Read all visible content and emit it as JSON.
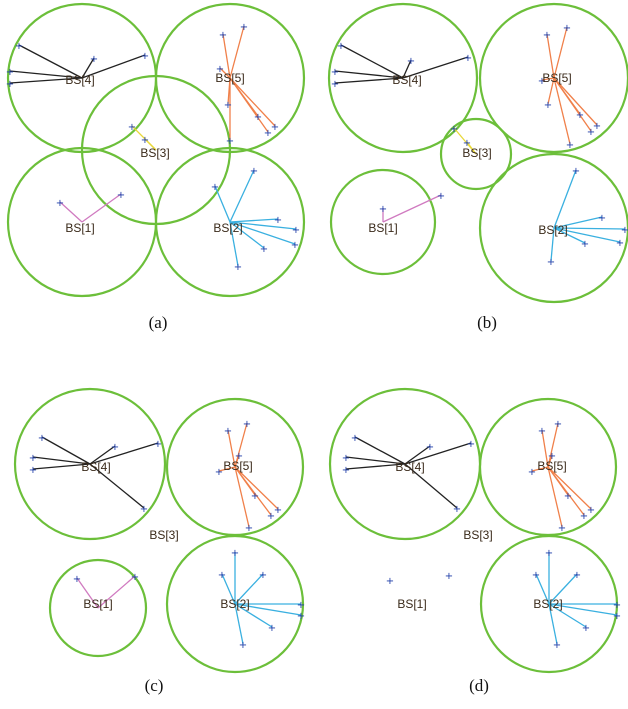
{
  "colors": {
    "circle": "#6cbf3a",
    "ue_marker": "#1f3ea8",
    "label": "#3a2a1a",
    "station_links": {
      "BS[1]": "#d07ac0",
      "BS[2]": "#3ab0e0",
      "BS[3]": "#e8d83a",
      "BS[4]": "#222222",
      "BS[5]": "#f0804a"
    }
  },
  "ue_glyph": "+",
  "panels": [
    {
      "caption": "(a)",
      "stations": [
        {
          "label": "BS[1]",
          "radius": 74,
          "links": 2
        },
        {
          "label": "BS[2]",
          "radius": 74,
          "links": 7
        },
        {
          "label": "BS[3]",
          "radius": 74,
          "links": 2
        },
        {
          "label": "BS[4]",
          "radius": 74,
          "links": 5
        },
        {
          "label": "BS[5]",
          "radius": 74,
          "links": 8
        }
      ]
    },
    {
      "caption": "(b)",
      "stations": [
        {
          "label": "BS[1]",
          "radius": 52,
          "links": 2
        },
        {
          "label": "BS[2]",
          "radius": 74,
          "links": 7
        },
        {
          "label": "BS[3]",
          "radius": 35,
          "links": 2
        },
        {
          "label": "BS[4]",
          "radius": 74,
          "links": 5
        },
        {
          "label": "BS[5]",
          "radius": 74,
          "links": 8
        }
      ]
    },
    {
      "caption": "(c)",
      "stations": [
        {
          "label": "BS[1]",
          "radius": 48,
          "links": 2
        },
        {
          "label": "BS[2]",
          "radius": 68,
          "links": 7
        },
        {
          "label": "BS[3]",
          "radius": 0,
          "links": 0
        },
        {
          "label": "BS[4]",
          "radius": 75,
          "links": 6
        },
        {
          "label": "BS[5]",
          "radius": 68,
          "links": 8
        }
      ]
    },
    {
      "caption": "(d)",
      "stations": [
        {
          "label": "BS[1]",
          "radius": 0,
          "links": 0
        },
        {
          "label": "BS[2]",
          "radius": 68,
          "links": 7
        },
        {
          "label": "BS[3]",
          "radius": 0,
          "links": 0
        },
        {
          "label": "BS[4]",
          "radius": 75,
          "links": 6
        },
        {
          "label": "BS[5]",
          "radius": 68,
          "links": 8
        }
      ]
    }
  ]
}
